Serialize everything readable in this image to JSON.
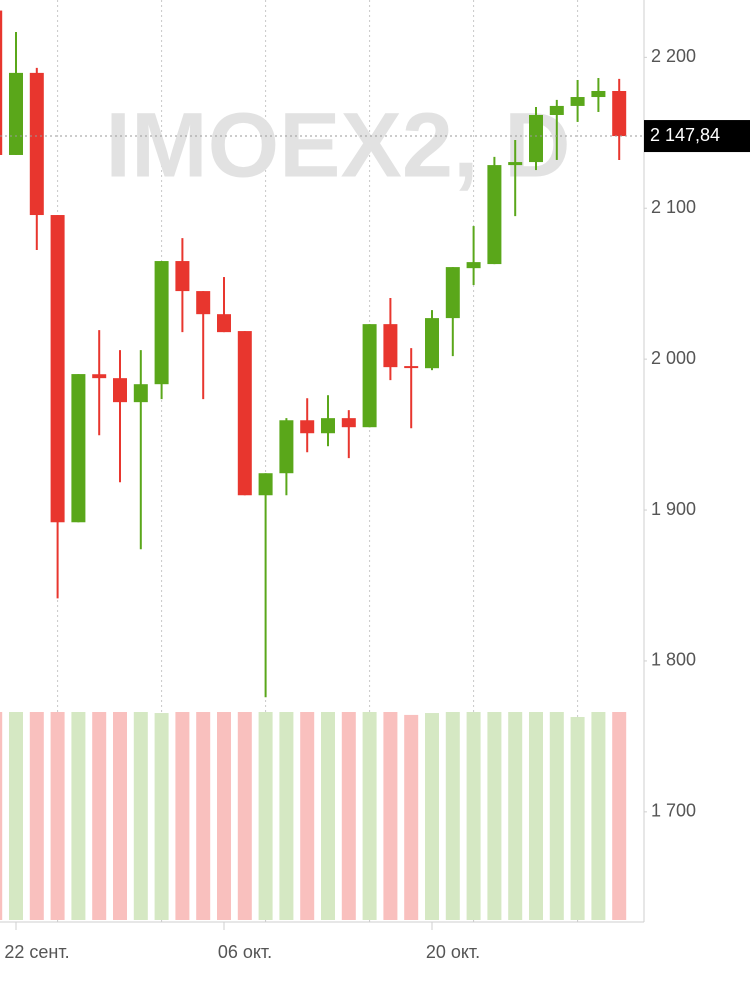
{
  "chart_data": {
    "type": "candlestick",
    "title": "IMOEX2, D",
    "categories": [
      null,
      "22 сент.",
      null,
      null,
      null,
      null,
      null,
      null,
      null,
      null,
      null,
      "06 окт.",
      null,
      null,
      null,
      null,
      null,
      null,
      null,
      null,
      null,
      "20 окт.",
      null,
      null,
      null,
      null,
      null,
      null,
      null,
      null,
      null
    ],
    "open": [
      2231,
      2135.3,
      2189.7,
      2095.5,
      1891.9,
      1990,
      1987.4,
      1971.5,
      1983.4,
      2065,
      2045.1,
      2029.8,
      2018.6,
      1909.8,
      1924.4,
      1959.5,
      1950.9,
      1960.9,
      1954.9,
      2023.2,
      1995.4,
      1994,
      2027.2,
      2060.3,
      2063,
      2128.6,
      2130.6,
      2161.8,
      2167.8,
      2173.7,
      2177.7
    ],
    "high": [
      2236,
      2216.8,
      2193,
      2095.5,
      1990.1,
      2019.2,
      2006,
      2006,
      2065,
      2080.2,
      2045.1,
      2054.4,
      2018.6,
      1924.4,
      1960.9,
      1974.1,
      1976.1,
      1966.2,
      2023.2,
      2040.5,
      2007.3,
      2032.5,
      2061,
      2088.2,
      2134,
      2145.2,
      2167.1,
      2171.8,
      2185,
      2186.3,
      2185.7
    ],
    "low": [
      2135.3,
      2135.3,
      2072.3,
      1841.5,
      1891.9,
      1949.6,
      1918.4,
      1874,
      1973.5,
      2017.9,
      1973.5,
      2017.9,
      1909.8,
      1775.9,
      1909.8,
      1938.3,
      1942.3,
      1934.4,
      1954.9,
      1986.1,
      1954.2,
      1992.7,
      2002,
      2049.1,
      2063,
      2094.8,
      2125.3,
      2132,
      2157.2,
      2163.8,
      2132
    ],
    "close": [
      2135.3,
      2189.7,
      2095.5,
      1891.9,
      1990.1,
      1987.4,
      1971.5,
      1983.4,
      2065,
      2045.1,
      2029.8,
      2017.9,
      1909.8,
      1924.4,
      1959.5,
      1950.9,
      1960.9,
      1954.9,
      2023.2,
      1994.7,
      1994.7,
      2027.2,
      2061,
      2064.3,
      2128.6,
      2130.6,
      2161.8,
      2167.8,
      2173.7,
      2177.7,
      2147.84
    ],
    "volume": [
      100,
      100,
      100,
      100,
      100,
      100,
      100,
      100,
      99.5,
      100,
      100,
      100,
      100,
      100,
      100,
      100,
      100,
      100,
      100,
      100,
      98.6,
      99.5,
      100,
      100,
      100,
      100,
      100,
      100,
      97.6,
      100,
      100
    ],
    "up_color": "#5aa71a",
    "down_color": "#e8362e",
    "up_volume_color": "#d5e8c3",
    "down_volume_color": "#f9c0be",
    "ylim": [
      1627,
      2238
    ],
    "yticks": [
      {
        "value": 1700,
        "label": "1 700"
      },
      {
        "value": 1800,
        "label": "1 800"
      },
      {
        "value": 1900,
        "label": "1 900"
      },
      {
        "value": 2000,
        "label": "2 000"
      },
      {
        "value": 2100,
        "label": "2 100"
      },
      {
        "value": 2200,
        "label": "2 200"
      }
    ],
    "volume_lim": [
      0,
      100
    ],
    "last_price": {
      "value": 2147.84,
      "label": "2 147,84"
    }
  }
}
